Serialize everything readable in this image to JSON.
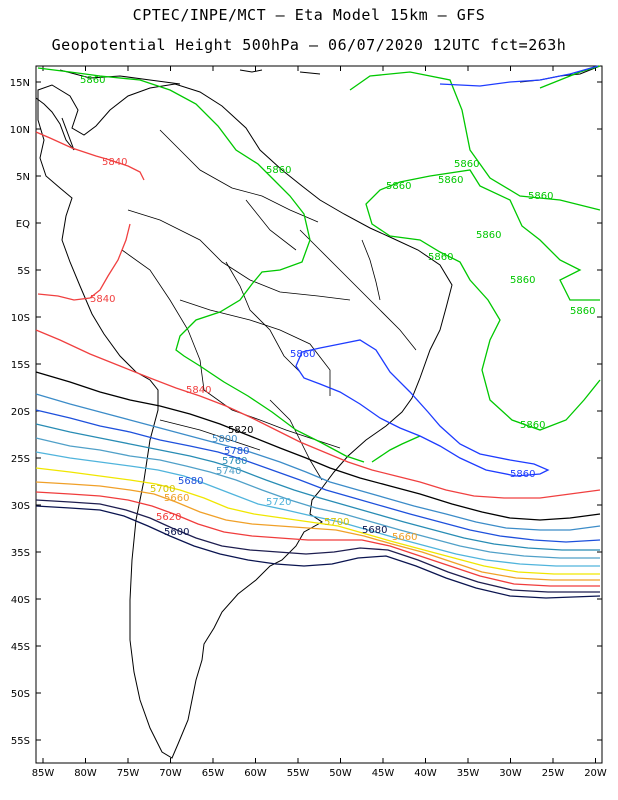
{
  "title_line1": "CPTEC/INPE/MCT –  Eta Model 15km – GFS",
  "title_line2": "Geopotential Height 500hPa – 06/07/2020 12UTC fct=263h",
  "lat_labels": [
    "15N",
    "10N",
    "5N",
    "EQ",
    "5S",
    "10S",
    "15S",
    "20S",
    "25S",
    "30S",
    "35S",
    "40S",
    "45S",
    "50S",
    "55S"
  ],
  "lon_labels": [
    "85W",
    "80W",
    "75W",
    "70W",
    "65W",
    "60W",
    "55W",
    "50W",
    "45W",
    "40W",
    "35W",
    "30W",
    "25W",
    "20W"
  ],
  "contour_levels": [
    {
      "value": "5860",
      "color": "#00c800"
    },
    {
      "value": "5860",
      "color": "#1e3cff"
    },
    {
      "value": "5840",
      "color": "#f04040"
    },
    {
      "value": "5820",
      "color": "#000000"
    },
    {
      "value": "5800",
      "color": "#3c8cc8"
    },
    {
      "value": "5780",
      "color": "#1e50dc"
    },
    {
      "value": "5760",
      "color": "#288cb4"
    },
    {
      "value": "5740",
      "color": "#50a0c8"
    },
    {
      "value": "5720",
      "color": "#50b4dc"
    },
    {
      "value": "5700",
      "color": "#f0e600"
    },
    {
      "value": "5680",
      "color": "#f0a028"
    },
    {
      "value": "5660",
      "color": "#f03c3c"
    },
    {
      "value": "5620",
      "color": "#1e1e50"
    },
    {
      "value": "5600",
      "color": "#0a1450"
    }
  ],
  "contour_labels": {
    "g1": "5860",
    "g2": "5860",
    "g3": "5860",
    "g4": "5860",
    "g5": "5860",
    "g6": "5860",
    "g7": "5860",
    "g8": "5860",
    "g9": "5860",
    "g10": "5860",
    "g11": "5860",
    "b1": "5860",
    "b2": "5860",
    "r1": "5840",
    "r2": "5840",
    "r3": "5840",
    "k1": "5820",
    "l1": "5800",
    "l2": "5780",
    "l3": "5760",
    "l4": "5740",
    "l5": "5680",
    "l6": "5720",
    "y1": "5700",
    "y2": "5700",
    "o1": "5660",
    "o2": "5660",
    "rr1": "5620",
    "n1": "5600",
    "n2": "5680"
  }
}
